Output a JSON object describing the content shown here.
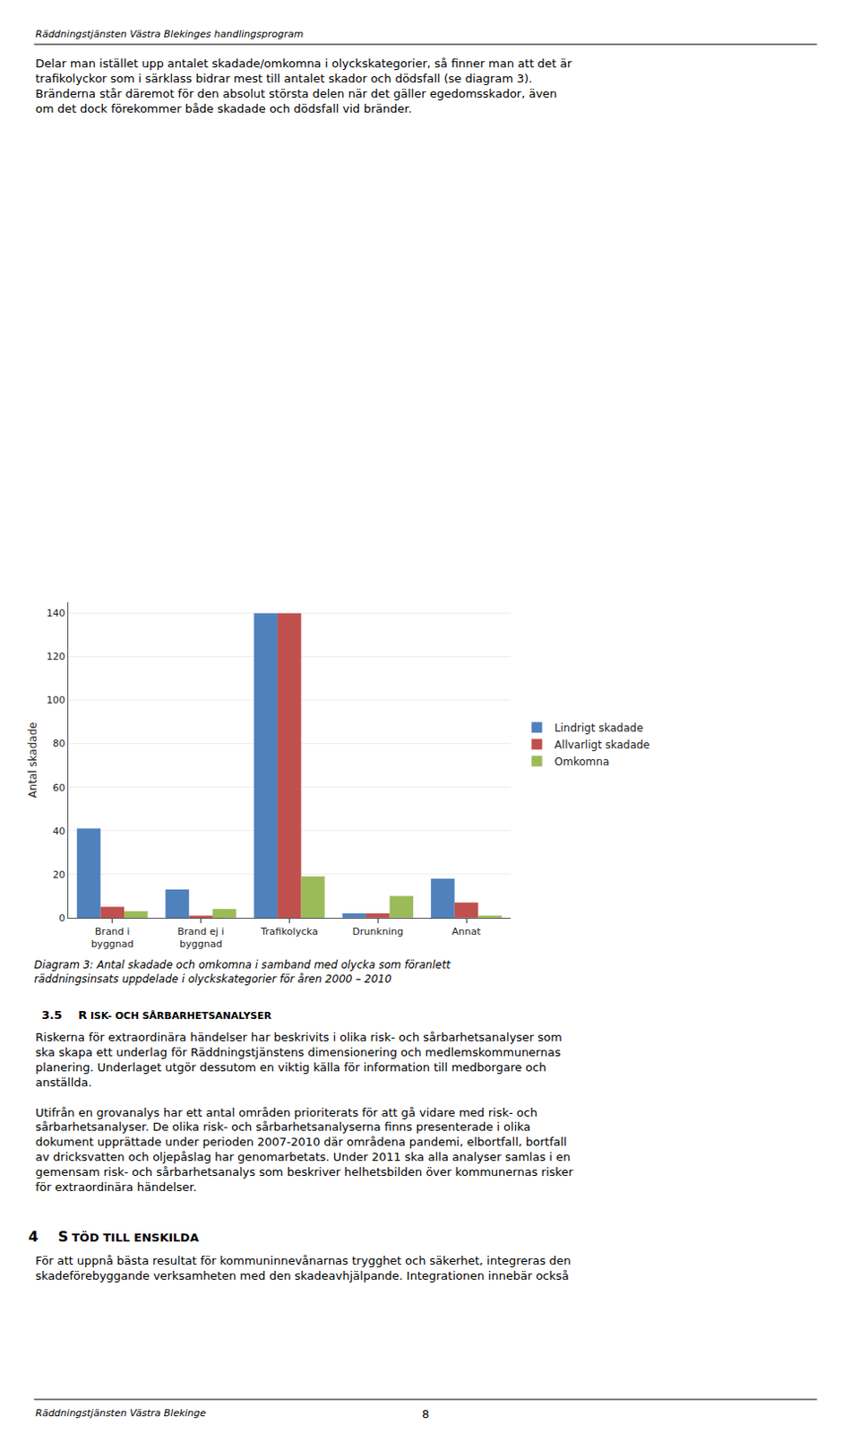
{
  "chart_data": {
    "type": "bar",
    "title": "Diagram 3: Antal skadade och omkomna i samband med olycka som föranlett\nräddningsinsats uppdelade i olyckskategorier för åren 2000 – 2010",
    "categories": [
      "Brand i\nbyggnad",
      "Brand ej i\nbyggnad",
      "Trafikolycka",
      "Drunkning",
      "Annat"
    ],
    "series": [
      {
        "name": "Lindrigt skadade",
        "color": "#4F81BD",
        "values": [
          41,
          13,
          140,
          2,
          18
        ]
      },
      {
        "name": "Allvarligt skadade",
        "color": "#C0504D",
        "values": [
          5,
          1,
          140,
          2,
          7
        ]
      },
      {
        "name": "Omkomna",
        "color": "#9BBB59",
        "values": [
          3,
          4,
          19,
          10,
          1
        ]
      }
    ],
    "ylabel": "Antal skadade",
    "ylim": [
      0,
      145
    ],
    "yticks": [
      0,
      20,
      40,
      60,
      80,
      100,
      120,
      140
    ],
    "grid": true,
    "legend": "right",
    "annotations": [
      "Räddningstjänsten Västra Blekinges handlingsprogram",
      "Delar man istället upp antalet skadade/omkomna i olyckskategorier, så finner man att det är\ntrafikolyckor som i särklass bidrar mest till antalet skador och dödsfall (se diagram 3).\nBränderna står däremot för den absolut största delen när det gäller egedomsskador, även\nom det dock förekommer både skadade och dödsfall vid bränder.",
      "3.5    R",
      "ISK- OCH SÅRBARHETSANALYSER",
      "Riskerna för extraordinära händelser har beskrivits i olika risk- och sårbarhetsanalyser som\nska skapa ett underlag för Räddningstjänstens dimensionering och medlemskommunernas\nplanering. Underlaget utgör dessutom en viktig källa för information till medborgare och\nanställda.\n\nUtifrån en grovanalys har ett antal områden prioriterats för att gå vidare med risk- och\nsårbarhetsanalyser. De olika risk- och sårbarhetsanalyserna finns presenterade i olika\ndokument upprättade under perioden 2007-2010 där områdena pandemi, elbortfall, bortfall\nav dricksvatten och oljepåslag har genomarbetats. Under 2011 ska alla analyser samlas i en\ngemensam risk- och sårbarhetsanalys som beskriver helhetsbilden över kommunernas risker\nför extraordinära händelser.",
      "4    S",
      "TÖD TILL ENSKILDA",
      "För att uppnå bästa resultat för kommuninnevånarnas trygghet och säkerhet, integreras den\nskadeförebyggande verksamheten med den skadeavhjälpande. Integrationen innebär också",
      "Räddningstjänsten Västra Blekinge",
      "8"
    ]
  }
}
